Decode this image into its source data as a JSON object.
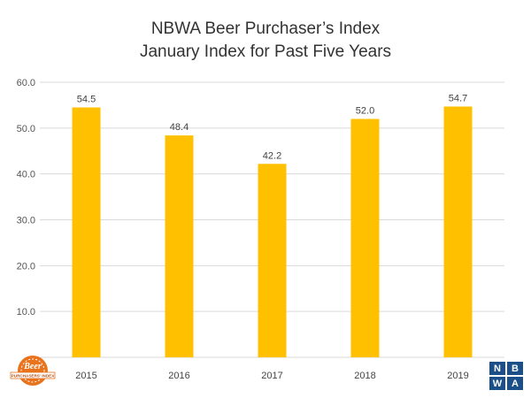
{
  "chart_data": {
    "type": "bar",
    "title": "NBWA Beer Purchaser’s Index",
    "subtitle": "January Index for Past Five Years",
    "categories": [
      "2015",
      "2016",
      "2017",
      "2018",
      "2019"
    ],
    "values": [
      54.5,
      48.4,
      42.2,
      52.0,
      54.7
    ],
    "data_labels": [
      "54.5",
      "48.4",
      "42.2",
      "52.0",
      "54.7"
    ],
    "y_ticks": [
      "10.0",
      "20.0",
      "30.0",
      "40.0",
      "50.0",
      "60.0"
    ],
    "y_tick_values": [
      10,
      20,
      30,
      40,
      50,
      60
    ],
    "ylim": [
      0,
      60
    ],
    "grid": true,
    "legend": "none",
    "bar_color": "#FFC000",
    "grid_color": "#D9D9D9"
  },
  "badge": {
    "brand_text": "Beer",
    "caption_text": "PURCHASERS' INDEX",
    "color": "#E8731C"
  },
  "logo": {
    "letters": [
      "N",
      "B",
      "W",
      "A"
    ],
    "color": "#1B4F8A"
  }
}
